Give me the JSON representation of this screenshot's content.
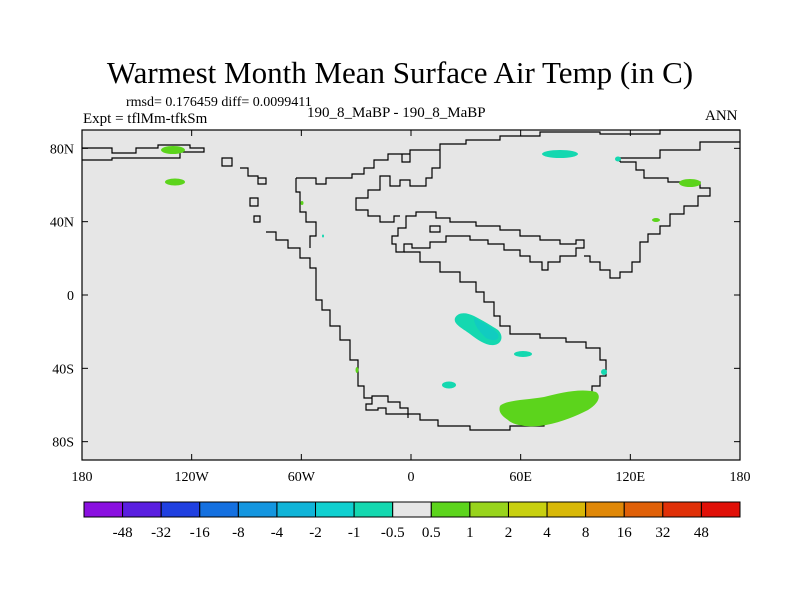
{
  "title": "Warmest Month Mean Surface Air Temp (in C)",
  "stats": "rmsd= 0.176459 diff= 0.0099411",
  "expt": "Expt = tflMm-tfkSm",
  "center_label": "190_8_MaBP - 190_8_MaBP",
  "season": "ANN",
  "map": {
    "lon_ticks": [
      "180",
      "120W",
      "60W",
      "0",
      "60E",
      "120E",
      "180"
    ],
    "lat_ticks": [
      "80N",
      "40N",
      "0",
      "40S",
      "80S"
    ],
    "background_color": "#e6e6e6"
  },
  "colorbar": {
    "labels": [
      "-48",
      "-32",
      "-16",
      "-8",
      "-4",
      "-2",
      "-1",
      "-0.5",
      "0.5",
      "1",
      "2",
      "4",
      "8",
      "16",
      "32",
      "48"
    ],
    "colors": [
      "#8a10e0",
      "#5a1fe0",
      "#2040e0",
      "#1470e0",
      "#1496e0",
      "#10b4d8",
      "#10d0d0",
      "#14d8b0",
      "#e6e6e6",
      "#5cd41c",
      "#98d41c",
      "#c8d010",
      "#d8b808",
      "#e08808",
      "#e06008",
      "#e03008",
      "#e01008"
    ]
  }
}
